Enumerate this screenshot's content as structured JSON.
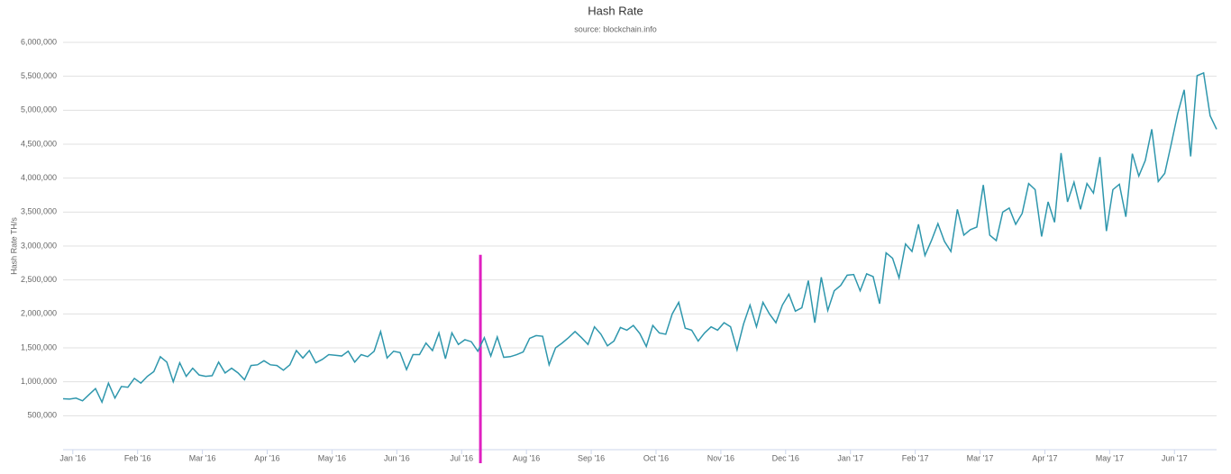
{
  "chart_data": {
    "type": "line",
    "title": "Hash Rate",
    "subtitle": "source: blockchain.info",
    "y_label": "Hash Rate TH/s",
    "x": [
      0,
      1,
      2,
      3,
      4,
      5,
      6,
      7,
      8,
      9,
      10,
      11,
      12,
      13,
      14,
      15,
      16,
      17,
      18,
      19,
      20,
      21,
      22,
      23,
      24,
      25,
      26,
      27,
      28,
      29,
      30,
      31,
      32,
      33,
      34,
      35,
      36,
      37,
      38,
      39,
      40,
      41,
      42,
      43,
      44,
      45,
      46,
      47,
      48,
      49,
      50,
      51,
      52,
      53,
      54,
      55,
      56,
      57,
      58,
      59,
      60,
      61,
      62,
      63,
      64,
      65,
      66,
      67,
      68,
      69,
      70,
      71,
      72,
      73,
      74,
      75,
      76,
      77,
      78,
      79,
      80,
      81,
      82,
      83,
      84,
      85,
      86,
      87,
      88,
      89,
      90,
      91,
      92,
      93,
      94,
      95,
      96,
      97,
      98,
      99,
      100,
      101,
      102,
      103,
      104,
      105,
      106,
      107,
      108,
      109,
      110,
      111,
      112,
      113,
      114,
      115,
      116,
      117,
      118,
      119,
      120,
      121,
      122,
      123,
      124,
      125,
      126,
      127,
      128,
      129,
      130,
      131,
      132,
      133,
      134,
      135,
      136,
      137,
      138,
      139,
      140,
      141,
      142,
      143,
      144,
      145,
      146,
      147,
      148,
      149,
      150,
      151,
      152,
      153,
      154,
      155,
      156,
      157,
      158,
      159,
      160,
      161,
      162,
      163,
      164,
      165,
      166,
      167,
      168,
      169,
      170,
      171,
      172,
      173,
      174,
      175,
      176,
      177,
      178
    ],
    "series": [
      {
        "name": "Hash Rate",
        "color": "#2f97ad",
        "values": [
          750000,
          745000,
          760000,
          720000,
          810000,
          900000,
          700000,
          980000,
          760000,
          930000,
          920000,
          1050000,
          980000,
          1080000,
          1150000,
          1370000,
          1290000,
          1000000,
          1280000,
          1080000,
          1200000,
          1100000,
          1080000,
          1090000,
          1290000,
          1130000,
          1200000,
          1130000,
          1030000,
          1240000,
          1250000,
          1310000,
          1250000,
          1240000,
          1170000,
          1250000,
          1460000,
          1350000,
          1460000,
          1280000,
          1330000,
          1400000,
          1390000,
          1380000,
          1450000,
          1290000,
          1400000,
          1370000,
          1450000,
          1740000,
          1350000,
          1450000,
          1430000,
          1180000,
          1400000,
          1400000,
          1570000,
          1460000,
          1720000,
          1340000,
          1720000,
          1550000,
          1620000,
          1590000,
          1450000,
          1650000,
          1380000,
          1660000,
          1360000,
          1370000,
          1400000,
          1440000,
          1640000,
          1680000,
          1670000,
          1250000,
          1500000,
          1570000,
          1650000,
          1740000,
          1650000,
          1550000,
          1810000,
          1700000,
          1530000,
          1600000,
          1800000,
          1760000,
          1830000,
          1710000,
          1520000,
          1830000,
          1720000,
          1700000,
          2000000,
          2170000,
          1790000,
          1760000,
          1600000,
          1720000,
          1810000,
          1760000,
          1870000,
          1810000,
          1470000,
          1850000,
          2130000,
          1810000,
          2170000,
          2000000,
          1870000,
          2130000,
          2290000,
          2040000,
          2090000,
          2490000,
          1870000,
          2540000,
          2050000,
          2340000,
          2420000,
          2570000,
          2580000,
          2340000,
          2590000,
          2550000,
          2150000,
          2900000,
          2820000,
          2530000,
          3030000,
          2920000,
          3320000,
          2860000,
          3080000,
          3330000,
          3070000,
          2920000,
          3540000,
          3160000,
          3240000,
          3280000,
          3900000,
          3160000,
          3080000,
          3500000,
          3560000,
          3320000,
          3480000,
          3920000,
          3830000,
          3140000,
          3650000,
          3350000,
          4370000,
          3650000,
          3940000,
          3540000,
          3920000,
          3780000,
          4310000,
          3220000,
          3830000,
          3910000,
          3430000,
          4360000,
          4030000,
          4260000,
          4720000,
          3950000,
          4070000,
          4500000,
          4950000,
          5300000,
          4320000,
          5510000,
          5550000,
          4920000,
          4720000
        ]
      }
    ],
    "xlim": [
      0,
      178
    ],
    "xticks": [
      {
        "value": 1.5,
        "label": "Jan '16"
      },
      {
        "value": 11.5,
        "label": "Feb '16"
      },
      {
        "value": 21.5,
        "label": "Mar '16"
      },
      {
        "value": 31.5,
        "label": "Apr '16"
      },
      {
        "value": 41.5,
        "label": "May '16"
      },
      {
        "value": 51.5,
        "label": "Jun '16"
      },
      {
        "value": 61.5,
        "label": "Jul '16"
      },
      {
        "value": 71.5,
        "label": "Aug '16"
      },
      {
        "value": 81.5,
        "label": "Sep '16"
      },
      {
        "value": 91.5,
        "label": "Oct '16"
      },
      {
        "value": 101.5,
        "label": "Nov '16"
      },
      {
        "value": 111.5,
        "label": "Dec '16"
      },
      {
        "value": 121.5,
        "label": "Jan '17"
      },
      {
        "value": 131.5,
        "label": "Feb '17"
      },
      {
        "value": 141.5,
        "label": "Mar '17"
      },
      {
        "value": 151.5,
        "label": "Apr '17"
      },
      {
        "value": 161.5,
        "label": "May '17"
      },
      {
        "value": 171.5,
        "label": "Jun '17"
      }
    ],
    "ylim": [
      0,
      6000000
    ],
    "yticks": [
      {
        "value": 500000,
        "label": "500,000"
      },
      {
        "value": 1000000,
        "label": "1,000,000"
      },
      {
        "value": 1500000,
        "label": "1,500,000"
      },
      {
        "value": 2000000,
        "label": "2,000,000"
      },
      {
        "value": 2500000,
        "label": "2,500,000"
      },
      {
        "value": 3000000,
        "label": "3,000,000"
      },
      {
        "value": 3500000,
        "label": "3,500,000"
      },
      {
        "value": 4000000,
        "label": "4,000,000"
      },
      {
        "value": 4500000,
        "label": "4,500,000"
      },
      {
        "value": 5000000,
        "label": "5,000,000"
      },
      {
        "value": 5500000,
        "label": "5,500,000"
      },
      {
        "value": 6000000,
        "label": "6,000,000"
      }
    ],
    "grid": true,
    "marker": {
      "x": 64.4,
      "top": 2870000,
      "color": "#e020c0"
    }
  }
}
